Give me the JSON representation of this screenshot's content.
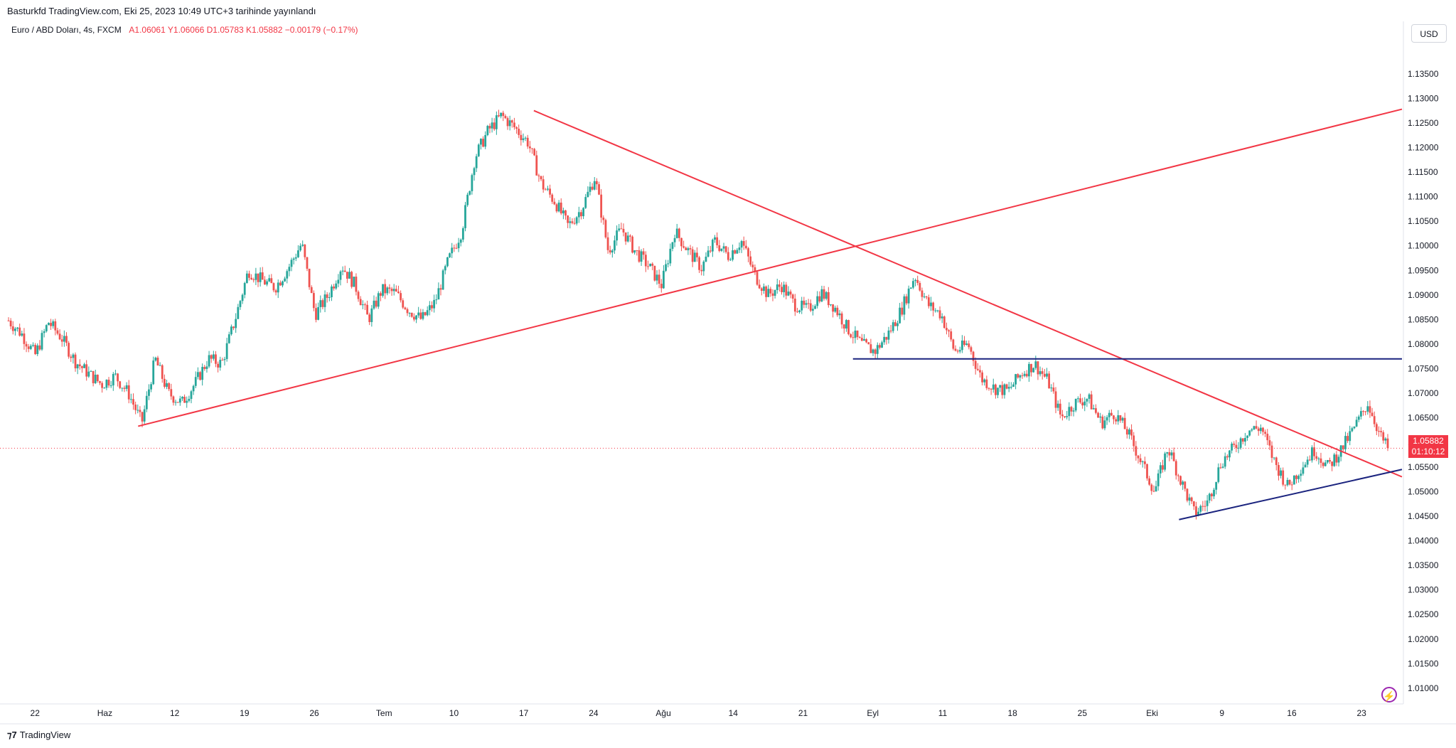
{
  "header": {
    "published_text": "Basturkfd TradingView.com, Eki 25, 2023 10:49 UTC+3 tarihinde yayınlandı"
  },
  "legend": {
    "symbol": "Euro / ABD Doları, 4s, FXCM",
    "open": "A1.06061",
    "high": "Y1.06066",
    "low": "D1.05783",
    "close": "K1.05882",
    "change": "−0.00179 (−0.17%)"
  },
  "scale": {
    "currency": "USD"
  },
  "last_price": {
    "value": "1.05882",
    "countdown": "01:10:12"
  },
  "footer": {
    "brand": "TradingView",
    "logo": "tradingview-logo"
  },
  "colors": {
    "up": "#26a69a",
    "down": "#ef5350",
    "red_line": "#f23645",
    "blue_line": "#1a237e",
    "bolt": "#9c27b0"
  },
  "chart_data": {
    "type": "candlestick",
    "y_ticks": [
      "1.13500",
      "1.13000",
      "1.12500",
      "1.12000",
      "1.11500",
      "1.11000",
      "1.10500",
      "1.10000",
      "1.09500",
      "1.09000",
      "1.08500",
      "1.08000",
      "1.07500",
      "1.07000",
      "1.06500",
      "1.06000",
      "1.05500",
      "1.05000",
      "1.04500",
      "1.04000",
      "1.03500",
      "1.03000",
      "1.02500",
      "1.02000",
      "1.01500",
      "1.01000"
    ],
    "x_ticks": [
      "22",
      "Haz",
      "12",
      "19",
      "26",
      "Tem",
      "10",
      "17",
      "24",
      "Ağu",
      "14",
      "21",
      "Eyl",
      "11",
      "18",
      "25",
      "Eki",
      "9",
      "16",
      "23"
    ],
    "ylim": [
      1.0055,
      1.1435
    ],
    "close_path": [
      [
        0,
        1.0848
      ],
      [
        2,
        1.082
      ],
      [
        4,
        1.0778
      ],
      [
        6,
        1.0845
      ],
      [
        8,
        1.0812
      ],
      [
        10,
        1.0765
      ],
      [
        12,
        1.074
      ],
      [
        14,
        1.0718
      ],
      [
        16,
        1.0735
      ],
      [
        18,
        1.07
      ],
      [
        20,
        1.064
      ],
      [
        22,
        1.077
      ],
      [
        24,
        1.07
      ],
      [
        26,
        1.068
      ],
      [
        28,
        1.072
      ],
      [
        30,
        1.077
      ],
      [
        32,
        1.076
      ],
      [
        34,
        1.085
      ],
      [
        36,
        1.095
      ],
      [
        38,
        1.093
      ],
      [
        40,
        1.0915
      ],
      [
        42,
        1.0955
      ],
      [
        44,
        1.1005
      ],
      [
        46,
        1.086
      ],
      [
        48,
        1.09
      ],
      [
        50,
        1.096
      ],
      [
        52,
        1.092
      ],
      [
        54,
        1.085
      ],
      [
        56,
        1.091
      ],
      [
        58,
        1.0905
      ],
      [
        60,
        1.087
      ],
      [
        62,
        1.085
      ],
      [
        64,
        1.0885
      ],
      [
        66,
        1.097
      ],
      [
        68,
        1.103
      ],
      [
        70,
        1.118
      ],
      [
        72,
        1.1235
      ],
      [
        74,
        1.1265
      ],
      [
        76,
        1.124
      ],
      [
        78,
        1.121
      ],
      [
        80,
        1.1125
      ],
      [
        82,
        1.109
      ],
      [
        84,
        1.104
      ],
      [
        86,
        1.1075
      ],
      [
        88,
        1.114
      ],
      [
        90,
        1.099
      ],
      [
        92,
        1.1035
      ],
      [
        94,
        1.099
      ],
      [
        96,
        1.096
      ],
      [
        98,
        1.092
      ],
      [
        100,
        1.103
      ],
      [
        102,
        1.099
      ],
      [
        104,
        1.0955
      ],
      [
        106,
        1.101
      ],
      [
        108,
        1.098
      ],
      [
        110,
        1.101
      ],
      [
        112,
        1.094
      ],
      [
        114,
        1.09
      ],
      [
        116,
        1.092
      ],
      [
        118,
        1.088
      ],
      [
        120,
        1.087
      ],
      [
        122,
        1.0905
      ],
      [
        124,
        1.0875
      ],
      [
        126,
        1.083
      ],
      [
        128,
        1.08
      ],
      [
        130,
        1.0785
      ],
      [
        132,
        1.082
      ],
      [
        134,
        1.087
      ],
      [
        136,
        1.094
      ],
      [
        138,
        1.088
      ],
      [
        140,
        1.086
      ],
      [
        142,
        1.0785
      ],
      [
        144,
        1.08
      ],
      [
        146,
        1.073
      ],
      [
        148,
        1.071
      ],
      [
        150,
        1.0705
      ],
      [
        152,
        1.074
      ],
      [
        154,
        1.076
      ],
      [
        156,
        1.0725
      ],
      [
        158,
        1.065
      ],
      [
        160,
        1.068
      ],
      [
        162,
        1.069
      ],
      [
        164,
        1.064
      ],
      [
        166,
        1.066
      ],
      [
        168,
        1.062
      ],
      [
        170,
        1.056
      ],
      [
        172,
        1.05
      ],
      [
        174,
        1.059
      ],
      [
        176,
        1.052
      ],
      [
        178,
        1.0455
      ],
      [
        180,
        1.048
      ],
      [
        182,
        1.056
      ],
      [
        184,
        1.059
      ],
      [
        186,
        1.0625
      ],
      [
        188,
        1.063
      ],
      [
        190,
        1.056
      ],
      [
        192,
        1.051
      ],
      [
        194,
        1.055
      ],
      [
        196,
        1.0585
      ],
      [
        198,
        1.055
      ],
      [
        200,
        1.0585
      ],
      [
        202,
        1.063
      ],
      [
        204,
        1.068
      ],
      [
        206,
        1.061
      ],
      [
        207,
        1.0588
      ]
    ],
    "trend_lines": [
      {
        "from": [
          0.093,
          1.0633
        ],
        "to": [
          1.0,
          1.1278
        ]
      },
      {
        "from": [
          0.377,
          1.1275
        ],
        "to": [
          1.0,
          1.053
        ]
      },
      {
        "from": [
          0.606,
          1.077
        ],
        "to": [
          1.0,
          1.077
        ]
      },
      {
        "from": [
          0.84,
          1.0443
        ],
        "to": [
          1.0,
          1.0545
        ]
      }
    ]
  }
}
